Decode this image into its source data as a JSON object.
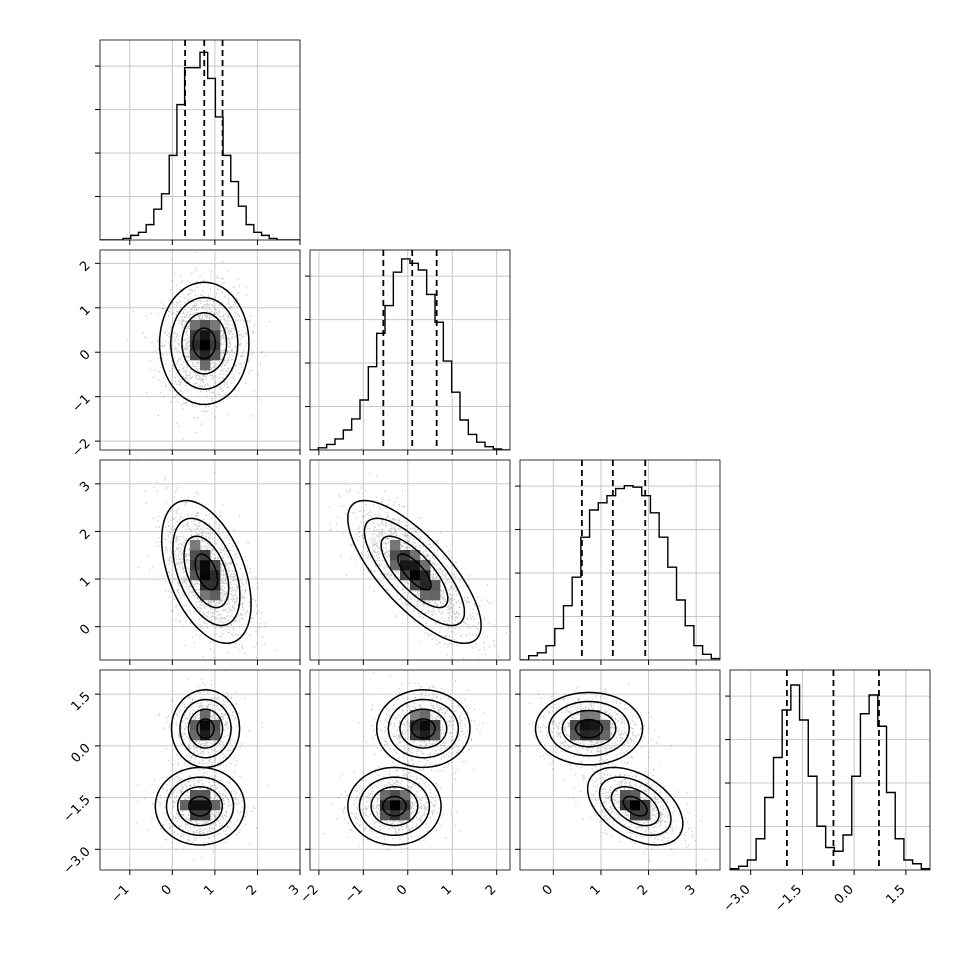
{
  "chart_data": {
    "type": "corner",
    "title": "",
    "parameters": [
      {
        "index": 0,
        "range": [
          -1.7,
          3.0
        ],
        "ticks": [
          -1,
          0,
          1,
          2,
          3
        ],
        "tick_labels": [
          "−1",
          "0",
          "1",
          "2",
          "3"
        ],
        "quantiles": [
          0.3,
          0.75,
          1.18
        ]
      },
      {
        "index": 1,
        "range": [
          -2.2,
          2.3
        ],
        "ticks": [
          -2,
          -1,
          0,
          1,
          2
        ],
        "tick_labels": [
          "−2",
          "−1",
          "0",
          "1",
          "2"
        ],
        "quantiles": [
          -0.55,
          0.1,
          0.65
        ]
      },
      {
        "index": 2,
        "range": [
          -0.7,
          3.5
        ],
        "ticks": [
          0,
          1,
          2,
          3
        ],
        "tick_labels": [
          "0",
          "1",
          "2",
          "3"
        ],
        "quantiles": [
          0.6,
          1.25,
          1.93
        ]
      },
      {
        "index": 3,
        "range": [
          -3.6,
          2.2
        ],
        "ticks": [
          -3.0,
          -1.5,
          0.0,
          1.5
        ],
        "tick_labels": [
          "−3.0",
          "−1.5",
          "0.0",
          "1.5"
        ],
        "quantiles": [
          -1.95,
          -0.6,
          0.72
        ]
      }
    ],
    "histograms": [
      {
        "param": 0,
        "bins": [
          -1.7,
          3.0
        ],
        "counts": [
          0,
          0,
          0,
          1,
          3,
          5,
          10,
          20,
          30,
          55,
          88,
          112,
          112,
          122,
          105,
          80,
          55,
          38,
          22,
          10,
          5,
          3,
          1,
          0,
          0,
          0
        ],
        "ymax": 130
      },
      {
        "param": 1,
        "bins": [
          -2.2,
          2.3
        ],
        "counts": [
          0,
          2,
          5,
          10,
          18,
          28,
          45,
          75,
          105,
          130,
          160,
          172,
          168,
          162,
          140,
          115,
          80,
          52,
          27,
          14,
          7,
          3,
          1,
          0
        ],
        "ymax": 180
      },
      {
        "param": 2,
        "bins": [
          -0.7,
          3.5
        ],
        "counts": [
          0,
          3,
          5,
          10,
          22,
          38,
          58,
          86,
          105,
          110,
          115,
          120,
          122,
          121,
          115,
          103,
          86,
          65,
          42,
          24,
          10,
          4,
          1
        ],
        "ymax": 140
      },
      {
        "param": 3,
        "bins": [
          -3.6,
          2.2
        ],
        "counts": [
          1,
          3,
          8,
          25,
          58,
          90,
          128,
          148,
          120,
          75,
          35,
          18,
          15,
          28,
          75,
          125,
          140,
          115,
          62,
          25,
          8,
          5,
          1
        ],
        "ymax": 160
      }
    ],
    "joint": [
      {
        "x": 0,
        "y": 1,
        "modes": [
          {
            "mx": 0.75,
            "my": 0.2,
            "sx": 0.42,
            "sy": 0.55,
            "rho": 0.0,
            "w": 1
          }
        ]
      },
      {
        "x": 0,
        "y": 2,
        "modes": [
          {
            "mx": 0.8,
            "my": 1.15,
            "sx": 0.42,
            "sy": 0.6,
            "rho": -0.45,
            "w": 1
          }
        ]
      },
      {
        "x": 1,
        "y": 2,
        "modes": [
          {
            "mx": 0.15,
            "my": 1.15,
            "sx": 0.6,
            "sy": 0.6,
            "rho": -0.75,
            "w": 1
          }
        ]
      },
      {
        "x": 0,
        "y": 3,
        "modes": [
          {
            "mx": 0.78,
            "my": 0.5,
            "sx": 0.32,
            "sy": 0.45,
            "rho": 0.0,
            "w": 0.5
          },
          {
            "mx": 0.65,
            "my": -1.75,
            "sx": 0.42,
            "sy": 0.45,
            "rho": 0.0,
            "w": 0.5
          }
        ]
      },
      {
        "x": 1,
        "y": 3,
        "modes": [
          {
            "mx": 0.35,
            "my": 0.5,
            "sx": 0.42,
            "sy": 0.45,
            "rho": 0.0,
            "w": 0.5
          },
          {
            "mx": -0.3,
            "my": -1.75,
            "sx": 0.42,
            "sy": 0.45,
            "rho": 0.0,
            "w": 0.5
          }
        ]
      },
      {
        "x": 2,
        "y": 3,
        "modes": [
          {
            "mx": 0.75,
            "my": 0.5,
            "sx": 0.45,
            "sy": 0.42,
            "rho": 0.0,
            "w": 0.5
          },
          {
            "mx": 1.72,
            "my": -1.75,
            "sx": 0.4,
            "sy": 0.45,
            "rho": -0.45,
            "w": 0.5
          }
        ]
      }
    ],
    "contour_levels_sigma": [
      0.5,
      1.0,
      1.5,
      2.0
    ],
    "grid": true,
    "colors": {
      "line": "#000000",
      "grid": "#c8c8c8",
      "points": "#555555",
      "density_high": "#000000",
      "density_low": "#ffffff"
    }
  }
}
